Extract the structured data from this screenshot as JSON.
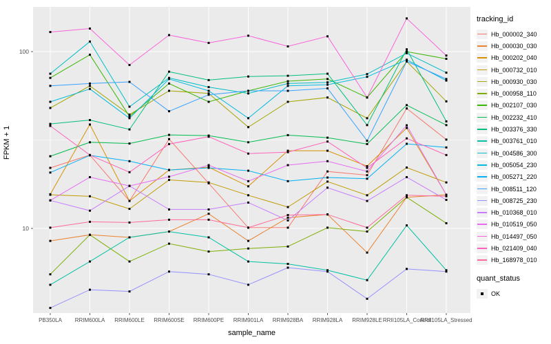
{
  "chart_data": {
    "type": "line",
    "title": "",
    "xlabel": "sample_name",
    "ylabel": "FPKM + 1",
    "y_scale": "log10",
    "y_ticks": [
      10,
      100
    ],
    "y_minor_ticks": [
      31.6
    ],
    "ylim": [
      3.3,
      179
    ],
    "grid": true,
    "legend_position": "right",
    "categories": [
      "PB350LA",
      "RRIM600LA",
      "RRIM600LE",
      "RRIM600SE",
      "RRIM600PE",
      "RRIM901LA",
      "RRIM928BA",
      "RRIM928LA",
      "RRIM928LE",
      "RRII105LA_Control",
      "RRII105LA_Stressed"
    ],
    "legend": {
      "series_title": "tracking_id",
      "marker_title": "quant_status",
      "marker_label": "OK",
      "marker_color": "#000000",
      "key_fill": "#F2F2F2"
    },
    "theme": {
      "panel_bg": "#EBEBEB",
      "grid_color": "#FFFFFF",
      "tick_color": "#333333",
      "tick_label_color": "#4D4D4D",
      "axis_title_color": "#000000",
      "point_color": "#000000"
    },
    "series": [
      {
        "name": "Hb_000002_340",
        "color": "#F8766D",
        "values": [
          22,
          26,
          14.3,
          32,
          18,
          10.1,
          10.1,
          21,
          20,
          47.7,
          31.8
        ]
      },
      {
        "name": "Hb_000030_030",
        "color": "#EA8331",
        "values": [
          8.5,
          9.2,
          8.9,
          9.6,
          12.1,
          8.5,
          11.5,
          12,
          7.3,
          15,
          15.5
        ]
      },
      {
        "name": "Hb_000202_040",
        "color": "#D89000",
        "values": [
          15.6,
          38.7,
          14.3,
          21.4,
          22.2,
          17.3,
          27.5,
          27.5,
          22.5,
          37,
          15.5
        ]
      },
      {
        "name": "Hb_000732_010",
        "color": "#C09B00",
        "values": [
          15.5,
          15.2,
          12.9,
          18.8,
          18.2,
          15.4,
          13.2,
          18.4,
          15.4,
          22.1,
          18.2
        ]
      },
      {
        "name": "Hb_000930_030",
        "color": "#A3A500",
        "values": [
          48,
          64,
          44,
          60,
          58,
          37.4,
          52,
          55,
          42,
          88,
          52.3
        ]
      },
      {
        "name": "Hb_000958_110",
        "color": "#7CAE00",
        "values": [
          5.5,
          9.2,
          6.5,
          8.2,
          7.4,
          7.7,
          7.9,
          10.1,
          9.6,
          15,
          10.7
        ]
      },
      {
        "name": "Hb_002107_030",
        "color": "#39B600",
        "values": [
          71,
          96,
          43,
          66,
          52,
          60,
          68,
          70,
          55,
          100,
          91
        ]
      },
      {
        "name": "Hb_002232_410",
        "color": "#00BB4E",
        "values": [
          25.6,
          30.7,
          30.2,
          33.8,
          33.5,
          30.7,
          33.7,
          32.6,
          30,
          49.8,
          38.4
        ]
      },
      {
        "name": "Hb_003376_330",
        "color": "#00BF7D",
        "values": [
          39,
          41,
          36.3,
          77,
          69,
          72.3,
          73,
          75,
          38.4,
          103,
          40.3
        ]
      },
      {
        "name": "Hb_003761_010",
        "color": "#00C1A3",
        "values": [
          4.8,
          6.5,
          8.9,
          9.6,
          8.9,
          6.5,
          6.3,
          5.8,
          5.1,
          10.4,
          5.8
        ]
      },
      {
        "name": "Hb_004586_300",
        "color": "#00BFC4",
        "values": [
          75,
          114,
          48.8,
          71,
          63,
          58,
          66,
          67,
          74.6,
          98,
          76
        ]
      },
      {
        "name": "Hb_005054_230",
        "color": "#00BAE0",
        "values": [
          52,
          61.5,
          42,
          70,
          60,
          42,
          64,
          65,
          72,
          90,
          68.6
        ]
      },
      {
        "name": "Hb_005271_220",
        "color": "#00B0F6",
        "values": [
          20.7,
          25.9,
          24,
          21.4,
          22,
          21.2,
          18.5,
          19.4,
          19.1,
          30.1,
          28.7
        ]
      },
      {
        "name": "Hb_008511_120",
        "color": "#35A2FF",
        "values": [
          64,
          66,
          67.4,
          46,
          57,
          60,
          60,
          62,
          31.3,
          88,
          70
        ]
      },
      {
        "name": "Hb_008725_230",
        "color": "#9590FF",
        "values": [
          3.55,
          4.5,
          4.4,
          5.7,
          5.5,
          4.8,
          6.0,
          5.7,
          4.0,
          5.9,
          5.7
        ]
      },
      {
        "name": "Hb_010368_010",
        "color": "#C77CFF",
        "values": [
          14.4,
          12.6,
          17.4,
          12.8,
          12.8,
          14,
          11.1,
          17,
          14.3,
          19.5,
          14.5
        ]
      },
      {
        "name": "Hb_010519_050",
        "color": "#E76BF3",
        "values": [
          14.4,
          19.5,
          17.4,
          19.6,
          22.8,
          18.5,
          22.8,
          24,
          21,
          38.3,
          15.5
        ]
      },
      {
        "name": "Hb_014497_050",
        "color": "#FA62DB",
        "values": [
          129,
          135,
          84,
          124,
          112,
          123,
          107,
          122,
          55,
          154,
          95
        ]
      },
      {
        "name": "Hb_021409_040",
        "color": "#FF62BC",
        "values": [
          38,
          26,
          20.8,
          30,
          33,
          26.5,
          27,
          31,
          22,
          32.3,
          26
        ]
      },
      {
        "name": "Hb_168978_010",
        "color": "#FF6A98",
        "values": [
          10.1,
          10.9,
          10.8,
          11.2,
          11.2,
          10.1,
          11.9,
          12,
          10.1,
          15.4,
          15.2
        ]
      }
    ]
  }
}
